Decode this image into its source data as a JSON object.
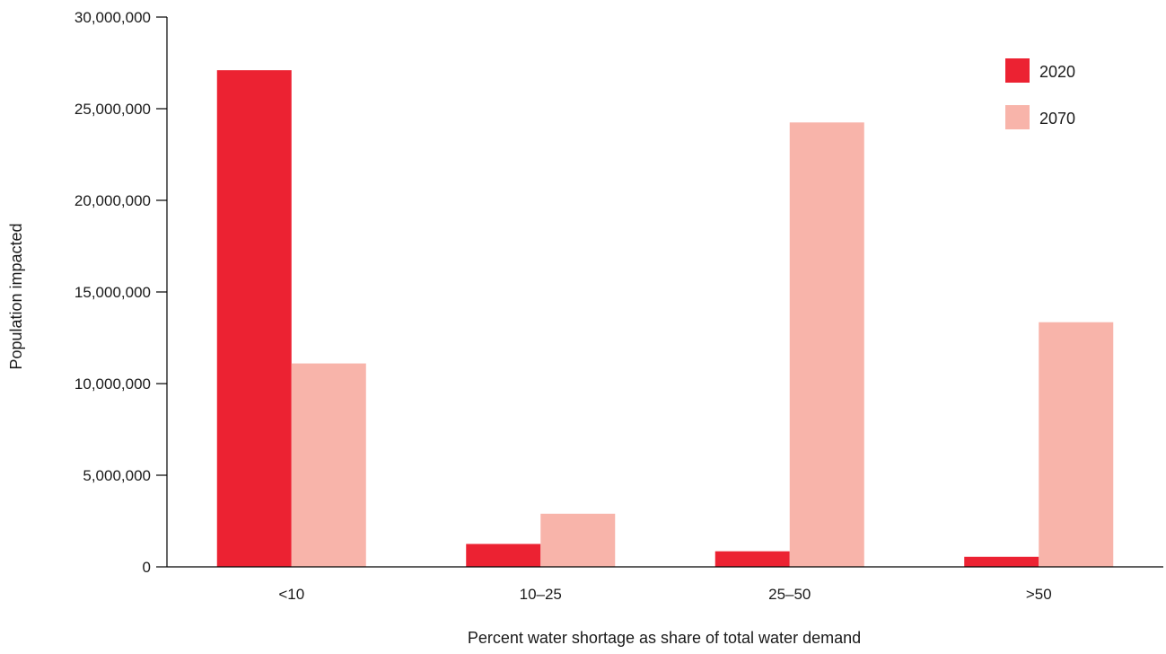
{
  "chart_data": {
    "type": "bar",
    "title": "",
    "xlabel": "Percent water shortage as share of total water demand",
    "ylabel": "Population impacted",
    "categories": [
      "<10",
      "10–25",
      "25–50",
      ">50"
    ],
    "series": [
      {
        "name": "2020",
        "color": "#ec2232",
        "values": [
          27100000,
          1250000,
          850000,
          550000
        ]
      },
      {
        "name": "2070",
        "color": "#f8b4aa",
        "values": [
          11100000,
          2900000,
          24250000,
          13350000
        ]
      }
    ],
    "ylim": [
      0,
      30000000
    ],
    "yticks": [
      0,
      5000000,
      10000000,
      15000000,
      20000000,
      25000000,
      30000000
    ],
    "ytick_labels": [
      "0",
      "5,000,000",
      "10,000,000",
      "15,000,000",
      "20,000,000",
      "25,000,000",
      "30,000,000"
    ],
    "grid": false,
    "legend_position": "top-right",
    "axis_color": "#000000"
  }
}
